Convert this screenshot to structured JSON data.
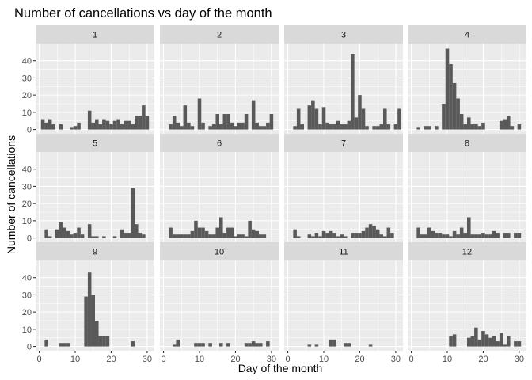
{
  "chart_data": {
    "type": "bar",
    "title": "Number of cancellations vs day of the month",
    "xlabel": "Day of the month",
    "ylabel": "Number of cancellations",
    "xlim": [
      -1,
      32
    ],
    "ylim": [
      -2.5,
      50
    ],
    "x_ticks": [
      0,
      10,
      20,
      30
    ],
    "y_ticks": [
      0,
      10,
      20,
      30,
      40
    ],
    "grid": true,
    "facet_by": "month",
    "facets": [
      {
        "label": "1",
        "values": [
          6,
          4,
          6,
          3,
          0,
          3,
          0,
          0,
          1,
          2,
          4,
          0,
          0,
          11,
          4,
          6,
          3,
          6,
          5,
          3,
          5,
          6,
          3,
          5,
          5,
          3,
          8,
          8,
          14,
          8,
          0
        ]
      },
      {
        "label": "2",
        "values": [
          0,
          3,
          8,
          4,
          2,
          14,
          4,
          2,
          0,
          18,
          4,
          0,
          2,
          3,
          9,
          3,
          9,
          9,
          4,
          2,
          4,
          4,
          9,
          0,
          17,
          4,
          2,
          2,
          4,
          9,
          0
        ]
      },
      {
        "label": "3",
        "values": [
          0,
          2,
          12,
          3,
          0,
          14,
          17,
          12,
          3,
          13,
          4,
          3,
          3,
          5,
          3,
          3,
          5,
          44,
          7,
          20,
          12,
          2,
          0,
          2,
          2,
          3,
          12,
          3,
          0,
          3,
          12
        ]
      },
      {
        "label": "4",
        "values": [
          0,
          1,
          0,
          2,
          2,
          0,
          2,
          0,
          15,
          47,
          38,
          27,
          18,
          9,
          3,
          7,
          3,
          3,
          2,
          4,
          0,
          0,
          0,
          0,
          5,
          6,
          8,
          2,
          0,
          3,
          0
        ]
      },
      {
        "label": "5",
        "values": [
          0,
          5,
          1,
          0,
          5,
          9,
          6,
          4,
          2,
          3,
          6,
          2,
          0,
          8,
          1,
          1,
          0,
          1,
          0,
          0,
          1,
          0,
          5,
          3,
          3,
          29,
          8,
          3,
          2,
          0,
          0
        ]
      },
      {
        "label": "6",
        "values": [
          0,
          6,
          2,
          2,
          2,
          2,
          2,
          4,
          10,
          6,
          6,
          4,
          2,
          2,
          6,
          12,
          3,
          6,
          6,
          1,
          2,
          2,
          1,
          10,
          5,
          4,
          2,
          2,
          0,
          0,
          0
        ]
      },
      {
        "label": "7",
        "values": [
          0,
          5,
          1,
          0,
          0,
          2,
          1,
          3,
          1,
          4,
          3,
          4,
          3,
          1,
          2,
          1,
          0,
          3,
          3,
          3,
          4,
          6,
          8,
          7,
          5,
          2,
          1,
          6,
          3,
          0,
          0
        ]
      },
      {
        "label": "8",
        "values": [
          0,
          6,
          2,
          2,
          6,
          4,
          3,
          3,
          2,
          2,
          1,
          4,
          2,
          6,
          3,
          12,
          2,
          2,
          2,
          3,
          2,
          2,
          4,
          3,
          0,
          3,
          3,
          0,
          3,
          3,
          0
        ]
      },
      {
        "label": "9",
        "values": [
          0,
          4,
          0,
          0,
          0,
          2,
          2,
          2,
          0,
          0,
          0,
          0,
          29,
          43,
          30,
          15,
          6,
          6,
          6,
          0,
          0,
          0,
          0,
          0,
          0,
          3,
          0,
          0,
          0,
          0,
          0
        ]
      },
      {
        "label": "10",
        "values": [
          0,
          0,
          1,
          4,
          0,
          0,
          0,
          0,
          2,
          2,
          2,
          0,
          2,
          0,
          0,
          2,
          0,
          2,
          0,
          0,
          0,
          0,
          2,
          2,
          3,
          2,
          2,
          0,
          3,
          0,
          0
        ]
      },
      {
        "label": "11",
        "values": [
          0,
          0,
          0,
          0,
          0,
          1,
          0,
          1,
          0,
          0,
          0,
          4,
          4,
          0,
          0,
          2,
          2,
          0,
          0,
          0,
          0,
          0,
          1,
          0,
          0,
          0,
          0,
          0,
          0,
          0,
          0
        ]
      },
      {
        "label": "12",
        "values": [
          0,
          0,
          0,
          0,
          0,
          0,
          0,
          0,
          0,
          0,
          6,
          7,
          0,
          0,
          0,
          5,
          6,
          11,
          4,
          9,
          7,
          5,
          6,
          3,
          8,
          1,
          6,
          0,
          3,
          3,
          0
        ]
      }
    ]
  }
}
